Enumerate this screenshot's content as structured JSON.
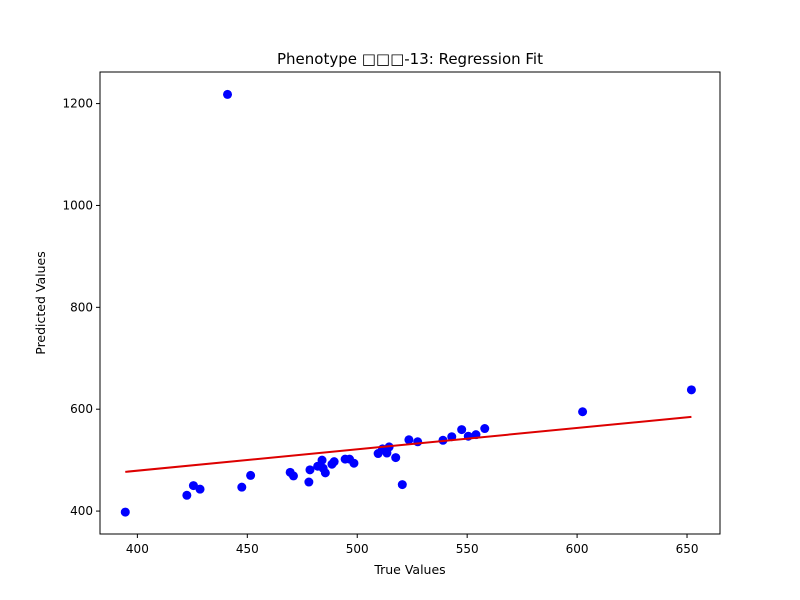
{
  "colors": {
    "points": "#0000ff",
    "fit_line": "#dd0000",
    "axes": "#000000",
    "background": "#ffffff"
  },
  "chart_data": {
    "type": "scatter",
    "title": "Phenotype □□□-13: Regression Fit",
    "xlabel": "True Values",
    "ylabel": "Predicted Values",
    "xlim": [
      383,
      665
    ],
    "ylim": [
      355,
      1262
    ],
    "xticks": [
      400,
      450,
      500,
      550,
      600,
      650
    ],
    "yticks": [
      400,
      600,
      800,
      1000,
      1200
    ],
    "grid": false,
    "legend": "none",
    "series": [
      {
        "kind": "points",
        "x": [
          394.5,
          441.0,
          422.5,
          425.5,
          428.5,
          447.5,
          451.5,
          469.5,
          471.0,
          478.0,
          478.5,
          482.0,
          484.0,
          484.5,
          485.5,
          488.5,
          489.5,
          494.5,
          496.5,
          498.5,
          509.5,
          511.5,
          513.5,
          514.5,
          517.5,
          520.5,
          523.5,
          527.5,
          539.0,
          543.0,
          547.5,
          550.5,
          554.0,
          558.0,
          602.5,
          652.0
        ],
        "y": [
          398,
          1218,
          431,
          450,
          443,
          447,
          470,
          476,
          469,
          457,
          481,
          488,
          500,
          484,
          475,
          492,
          497,
          502,
          502,
          494,
          513,
          522,
          514,
          526,
          505,
          452,
          540,
          536,
          539,
          546,
          560,
          547,
          550,
          562,
          595,
          638
        ]
      },
      {
        "kind": "fit_line",
        "x": [
          394.5,
          652.0
        ],
        "y": [
          477,
          585
        ]
      }
    ]
  }
}
